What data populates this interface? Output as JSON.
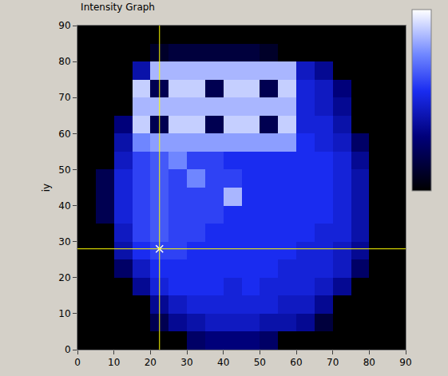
{
  "chart_data": {
    "type": "heatmap",
    "title": "Intensity Graph",
    "y_label": "iy",
    "grid": false,
    "xlim": [
      0,
      90
    ],
    "ylim": [
      0,
      90
    ],
    "xticks": [
      0,
      10,
      20,
      30,
      40,
      50,
      60,
      70,
      80,
      90
    ],
    "yticks": [
      0,
      10,
      20,
      30,
      40,
      50,
      60,
      70,
      80,
      90
    ],
    "zlim": [
      0,
      100
    ],
    "cursor": {
      "x": 22.5,
      "y": 28
    },
    "x": [
      2.5,
      7.5,
      12.5,
      17.5,
      22.5,
      27.5,
      32.5,
      37.5,
      42.5,
      47.5,
      52.5,
      57.5,
      62.5,
      67.5,
      72.5,
      77.5,
      82.5,
      87.5
    ],
    "y": [
      2.5,
      7.5,
      12.5,
      17.5,
      22.5,
      27.5,
      32.5,
      37.5,
      42.5,
      47.5,
      52.5,
      57.5,
      62.5,
      67.5,
      72.5,
      77.5,
      82.5,
      87.5
    ],
    "z": [
      [
        0,
        0,
        0,
        0,
        0,
        0,
        25,
        30,
        30,
        30,
        25,
        0,
        0,
        0,
        0,
        0,
        0,
        0
      ],
      [
        0,
        0,
        0,
        0,
        20,
        35,
        40,
        45,
        45,
        45,
        40,
        40,
        35,
        15,
        0,
        0,
        0,
        0
      ],
      [
        0,
        0,
        0,
        0,
        35,
        45,
        50,
        50,
        50,
        50,
        50,
        45,
        45,
        35,
        0,
        0,
        0,
        0
      ],
      [
        0,
        0,
        0,
        35,
        50,
        55,
        55,
        55,
        50,
        55,
        50,
        50,
        50,
        45,
        35,
        0,
        0,
        0
      ],
      [
        0,
        0,
        25,
        45,
        55,
        55,
        55,
        55,
        55,
        55,
        55,
        50,
        50,
        50,
        45,
        25,
        0,
        0
      ],
      [
        0,
        0,
        40,
        55,
        60,
        60,
        55,
        55,
        55,
        55,
        55,
        55,
        50,
        50,
        45,
        35,
        0,
        0
      ],
      [
        0,
        0,
        45,
        60,
        65,
        60,
        60,
        55,
        55,
        55,
        55,
        55,
        55,
        50,
        50,
        40,
        0,
        0
      ],
      [
        0,
        20,
        50,
        60,
        65,
        60,
        60,
        60,
        55,
        55,
        55,
        55,
        55,
        55,
        50,
        40,
        0,
        0
      ],
      [
        0,
        20,
        50,
        60,
        65,
        60,
        60,
        60,
        85,
        55,
        55,
        55,
        55,
        55,
        50,
        40,
        0,
        0
      ],
      [
        0,
        20,
        50,
        60,
        65,
        60,
        75,
        60,
        60,
        55,
        55,
        55,
        55,
        55,
        50,
        40,
        0,
        0
      ],
      [
        0,
        0,
        45,
        60,
        65,
        75,
        60,
        60,
        55,
        55,
        55,
        55,
        55,
        55,
        50,
        35,
        0,
        0
      ],
      [
        0,
        0,
        40,
        75,
        80,
        80,
        80,
        80,
        80,
        80,
        80,
        80,
        55,
        50,
        45,
        25,
        0,
        0
      ],
      [
        0,
        0,
        30,
        90,
        20,
        90,
        90,
        20,
        90,
        90,
        20,
        90,
        50,
        50,
        40,
        0,
        0,
        0
      ],
      [
        0,
        0,
        0,
        85,
        85,
        85,
        85,
        85,
        85,
        85,
        85,
        85,
        50,
        45,
        35,
        0,
        0,
        0
      ],
      [
        0,
        0,
        0,
        90,
        20,
        90,
        90,
        20,
        90,
        90,
        20,
        90,
        50,
        45,
        30,
        0,
        0,
        0
      ],
      [
        0,
        0,
        0,
        40,
        85,
        85,
        85,
        85,
        85,
        85,
        85,
        85,
        45,
        35,
        0,
        0,
        0,
        0
      ],
      [
        0,
        0,
        0,
        0,
        10,
        15,
        15,
        15,
        15,
        15,
        10,
        0,
        0,
        0,
        0,
        0,
        0,
        0
      ],
      [
        0,
        0,
        0,
        0,
        0,
        0,
        0,
        0,
        0,
        0,
        0,
        0,
        0,
        0,
        0,
        0,
        0,
        0
      ]
    ]
  }
}
